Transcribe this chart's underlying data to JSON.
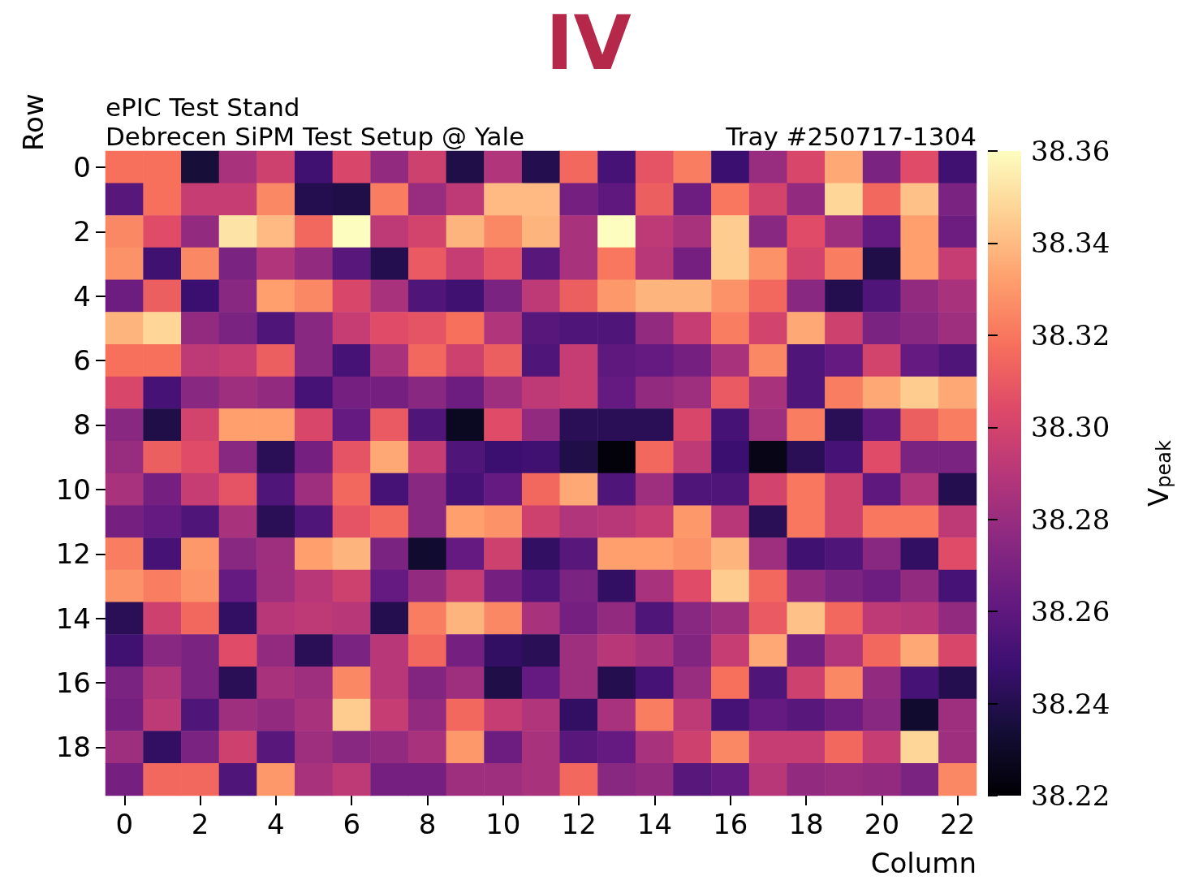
{
  "chart_data": {
    "type": "heatmap",
    "title": "IV",
    "xlabel": "Column",
    "ylabel": "Row",
    "clabel": "V$_{peak}$",
    "annotations": [
      "ePIC Test Stand",
      "Debrecen SiPM Test Setup @ Yale",
      "Tray #250717-1304"
    ],
    "categories": [
      "0",
      null,
      "2",
      null,
      "4",
      null,
      "6",
      null,
      "8",
      null,
      "10",
      null,
      "12",
      null,
      "14",
      null,
      "16",
      null,
      "18",
      null,
      "20",
      null,
      "22"
    ],
    "y_categories": [
      "0",
      null,
      "2",
      null,
      "4",
      null,
      "6",
      null,
      "8",
      null,
      "10",
      null,
      "12",
      null,
      "14",
      null,
      "16",
      null,
      "18",
      null
    ],
    "clim": [
      38.22,
      38.36
    ],
    "cticks": [
      {
        "value": 38.22,
        "label": "38.22"
      },
      {
        "value": 38.24,
        "label": "38.24"
      },
      {
        "value": 38.26,
        "label": "38.26"
      },
      {
        "value": 38.28,
        "label": "38.28"
      },
      {
        "value": 38.3,
        "label": "38.30"
      },
      {
        "value": 38.32,
        "label": "38.32"
      },
      {
        "value": 38.34,
        "label": "38.34"
      },
      {
        "value": 38.36,
        "label": "38.36"
      }
    ],
    "cells": [
      [
        38.318,
        38.318,
        38.235,
        38.285,
        38.298,
        38.25,
        38.302,
        38.278,
        38.298,
        38.238,
        38.288,
        38.24,
        38.315,
        38.252,
        38.308,
        38.322,
        38.248,
        38.28,
        38.302,
        38.335,
        38.27,
        38.305,
        38.25
      ],
      [
        38.258,
        38.318,
        38.295,
        38.295,
        38.325,
        38.24,
        38.238,
        38.322,
        38.28,
        38.292,
        38.34,
        38.34,
        38.268,
        38.26,
        38.312,
        38.265,
        38.32,
        38.3,
        38.278,
        38.348,
        38.315,
        38.342,
        38.27
      ],
      [
        38.325,
        38.305,
        38.278,
        38.352,
        38.34,
        38.315,
        38.36,
        38.292,
        38.3,
        38.338,
        38.325,
        38.338,
        38.285,
        38.36,
        38.292,
        38.285,
        38.345,
        38.275,
        38.305,
        38.282,
        38.262,
        38.332,
        38.265
      ],
      [
        38.328,
        38.25,
        38.325,
        38.27,
        38.288,
        38.278,
        38.258,
        38.24,
        38.31,
        38.295,
        38.308,
        38.258,
        38.285,
        38.32,
        38.29,
        38.268,
        38.345,
        38.328,
        38.3,
        38.322,
        38.238,
        38.332,
        38.295
      ],
      [
        38.265,
        38.312,
        38.248,
        38.275,
        38.332,
        38.325,
        38.302,
        38.285,
        38.255,
        38.25,
        38.27,
        38.292,
        38.312,
        38.33,
        38.338,
        38.338,
        38.328,
        38.315,
        38.275,
        38.24,
        38.255,
        38.278,
        38.285
      ],
      [
        38.338,
        38.348,
        38.278,
        38.27,
        38.255,
        38.275,
        38.295,
        38.305,
        38.308,
        38.318,
        38.288,
        38.258,
        38.255,
        38.255,
        38.278,
        38.295,
        38.322,
        38.3,
        38.335,
        38.298,
        38.27,
        38.275,
        38.282
      ],
      [
        38.318,
        38.318,
        38.292,
        38.295,
        38.312,
        38.275,
        38.252,
        38.285,
        38.315,
        38.298,
        38.312,
        38.255,
        38.295,
        38.26,
        38.262,
        38.268,
        38.285,
        38.325,
        38.255,
        38.262,
        38.3,
        38.262,
        38.255
      ],
      [
        38.302,
        38.252,
        38.275,
        38.282,
        38.278,
        38.252,
        38.268,
        38.268,
        38.275,
        38.265,
        38.282,
        38.292,
        38.295,
        38.262,
        38.278,
        38.282,
        38.31,
        38.285,
        38.255,
        38.322,
        38.335,
        38.345,
        38.335
      ],
      [
        38.275,
        38.238,
        38.3,
        38.332,
        38.332,
        38.302,
        38.262,
        38.31,
        38.255,
        38.228,
        38.305,
        38.278,
        38.242,
        38.242,
        38.242,
        38.302,
        38.252,
        38.282,
        38.322,
        38.242,
        38.26,
        38.312,
        38.322
      ],
      [
        38.28,
        38.312,
        38.305,
        38.275,
        38.242,
        38.268,
        38.308,
        38.335,
        38.295,
        38.255,
        38.248,
        38.25,
        38.238,
        38.222,
        38.315,
        38.292,
        38.248,
        38.225,
        38.242,
        38.252,
        38.305,
        38.27,
        38.27
      ],
      [
        38.285,
        38.268,
        38.295,
        38.308,
        38.255,
        38.282,
        38.315,
        38.252,
        38.275,
        38.252,
        38.262,
        38.315,
        38.335,
        38.255,
        38.282,
        38.255,
        38.255,
        38.3,
        38.32,
        38.298,
        38.26,
        38.288,
        38.24
      ],
      [
        38.268,
        38.262,
        38.255,
        38.285,
        38.242,
        38.255,
        38.308,
        38.315,
        38.275,
        38.332,
        38.328,
        38.298,
        38.288,
        38.29,
        38.295,
        38.33,
        38.29,
        38.242,
        38.32,
        38.298,
        38.32,
        38.32,
        38.292
      ],
      [
        38.322,
        38.252,
        38.33,
        38.275,
        38.282,
        38.332,
        38.338,
        38.27,
        38.232,
        38.262,
        38.298,
        38.245,
        38.258,
        38.332,
        38.332,
        38.328,
        38.338,
        38.282,
        38.25,
        38.255,
        38.275,
        38.245,
        38.305
      ],
      [
        38.328,
        38.322,
        38.328,
        38.262,
        38.282,
        38.29,
        38.298,
        38.262,
        38.278,
        38.295,
        38.268,
        38.255,
        38.27,
        38.245,
        38.285,
        38.305,
        38.345,
        38.315,
        38.278,
        38.27,
        38.265,
        38.278,
        38.252
      ],
      [
        38.242,
        38.298,
        38.315,
        38.245,
        38.29,
        38.292,
        38.29,
        38.24,
        38.322,
        38.338,
        38.325,
        38.285,
        38.268,
        38.278,
        38.255,
        38.275,
        38.282,
        38.31,
        38.342,
        38.315,
        38.292,
        38.29,
        38.278
      ],
      [
        38.25,
        38.275,
        38.27,
        38.305,
        38.278,
        38.242,
        38.27,
        38.29,
        38.315,
        38.268,
        38.245,
        38.242,
        38.282,
        38.29,
        38.285,
        38.272,
        38.295,
        38.335,
        38.268,
        38.288,
        38.315,
        38.335,
        38.302
      ],
      [
        38.27,
        38.288,
        38.27,
        38.242,
        38.285,
        38.282,
        38.325,
        38.29,
        38.272,
        38.282,
        38.238,
        38.262,
        38.282,
        38.24,
        38.252,
        38.28,
        38.318,
        38.255,
        38.298,
        38.325,
        38.278,
        38.252,
        38.24
      ],
      [
        38.268,
        38.292,
        38.255,
        38.282,
        38.278,
        38.285,
        38.345,
        38.295,
        38.278,
        38.315,
        38.295,
        38.288,
        38.245,
        38.285,
        38.322,
        38.292,
        38.252,
        38.262,
        38.258,
        38.265,
        38.275,
        38.232,
        38.282
      ],
      [
        38.282,
        38.245,
        38.27,
        38.298,
        38.258,
        38.282,
        38.275,
        38.278,
        38.285,
        38.33,
        38.265,
        38.285,
        38.258,
        38.262,
        38.285,
        38.298,
        38.325,
        38.295,
        38.295,
        38.315,
        38.295,
        38.348,
        38.282
      ],
      [
        38.268,
        38.315,
        38.315,
        38.255,
        38.33,
        38.285,
        38.292,
        38.268,
        38.268,
        38.282,
        38.282,
        38.285,
        38.315,
        38.275,
        38.278,
        38.258,
        38.262,
        38.29,
        38.278,
        38.28,
        38.278,
        38.27,
        38.325
      ]
    ]
  }
}
